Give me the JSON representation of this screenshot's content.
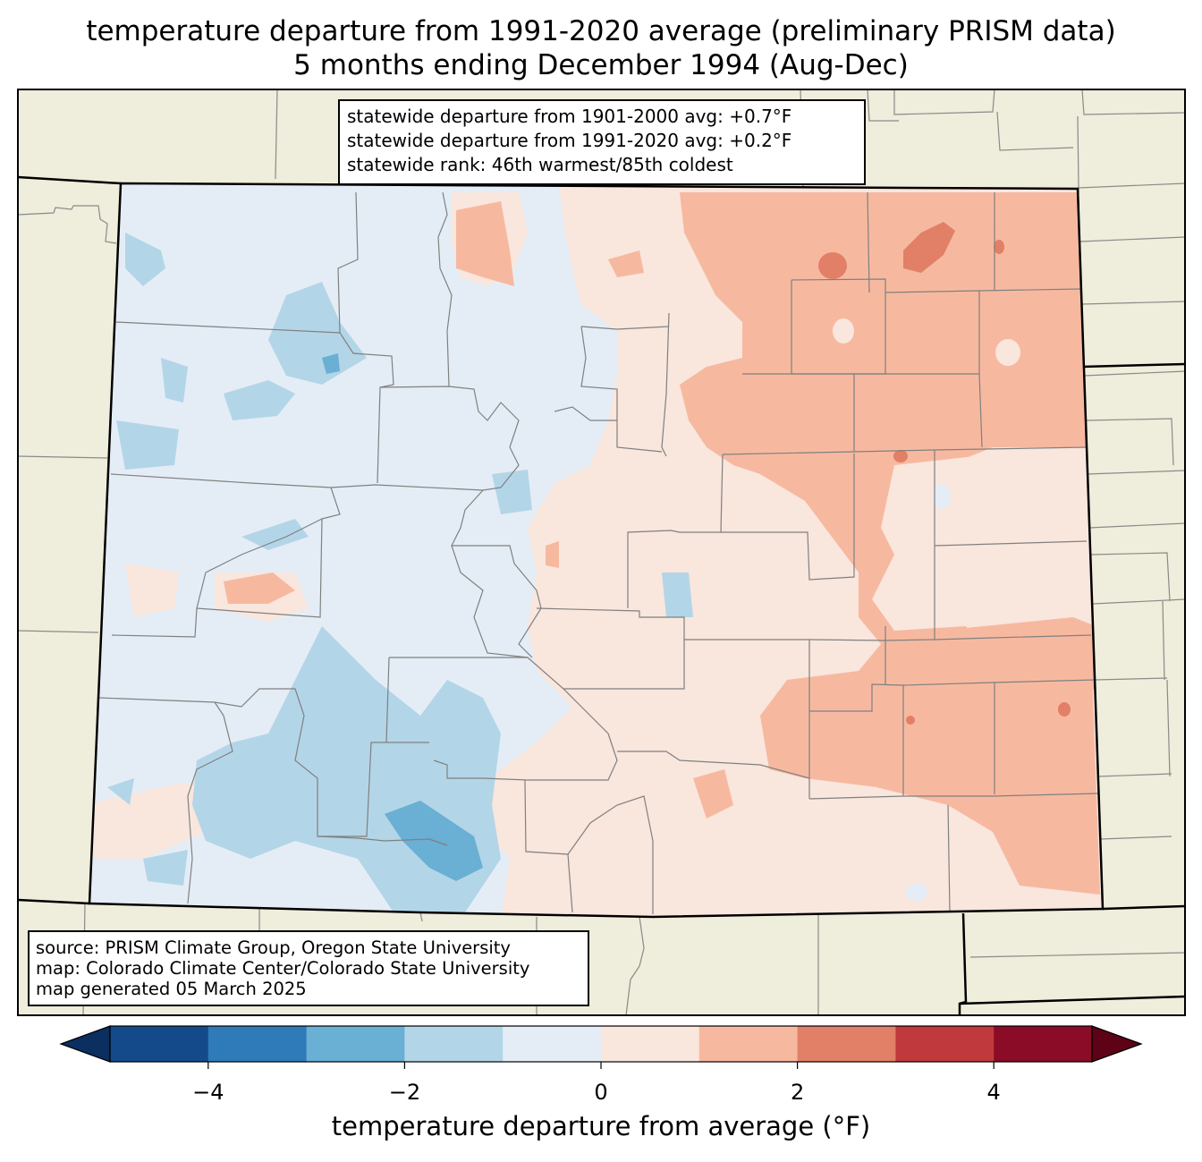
{
  "title_line1": "temperature departure from 1991-2020 average (preliminary PRISM data)",
  "title_line2": "5 months ending December 1994 (Aug-Dec)",
  "stats": {
    "line1": "statewide departure from 1901-2000 avg: +0.7°F",
    "line2": "statewide departure from 1991-2020 avg: +0.2°F",
    "line3": "statewide rank: 46th warmest/85th coldest"
  },
  "source": {
    "line1": "source: PRISM Climate Group, Oregon State University",
    "line2": "map: Colorado Climate Center/Colorado State University",
    "line3": "map generated 05 March 2025"
  },
  "colorbar": {
    "label": "temperature departure from average (°F)",
    "ticks": [
      "−4",
      "−2",
      "0",
      "2",
      "4"
    ],
    "tick_values": [
      -4,
      -2,
      0,
      2,
      4
    ],
    "bins": [
      {
        "from": -5,
        "to": -4,
        "color": "#154a8a"
      },
      {
        "from": -4,
        "to": -3,
        "color": "#2f7ab8"
      },
      {
        "from": -3,
        "to": -2,
        "color": "#6aafd4"
      },
      {
        "from": -2,
        "to": -1,
        "color": "#b3d5e8"
      },
      {
        "from": -1,
        "to": 0,
        "color": "#e4edf5"
      },
      {
        "from": 0,
        "to": 1,
        "color": "#f9e6dd"
      },
      {
        "from": 1,
        "to": 2,
        "color": "#f6b9a0"
      },
      {
        "from": 2,
        "to": 3,
        "color": "#e27f67"
      },
      {
        "from": 3,
        "to": 4,
        "color": "#c0393c"
      },
      {
        "from": 4,
        "to": 5,
        "color": "#8a0c26"
      }
    ],
    "under_color": "#0a2f60",
    "over_color": "#5e0218"
  },
  "colors": {
    "land": "#efeddb",
    "state_border": "#000000",
    "county_border": "#808080"
  }
}
